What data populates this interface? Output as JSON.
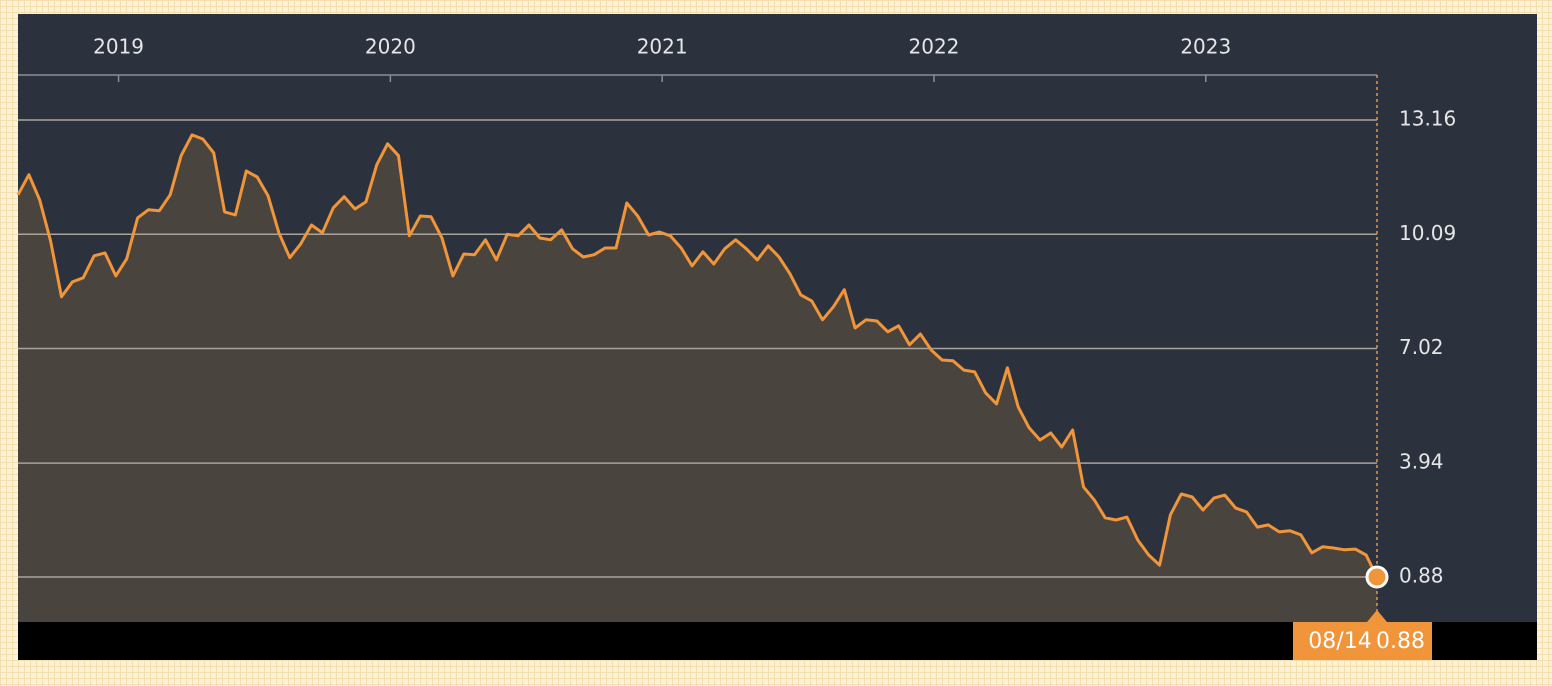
{
  "chart_data": {
    "type": "area",
    "x": [
      2018.63,
      2018.67,
      2018.71,
      2018.75,
      2018.79,
      2018.83,
      2018.87,
      2018.91,
      2018.95,
      2018.99,
      2019.03,
      2019.07,
      2019.11,
      2019.15,
      2019.19,
      2019.23,
      2019.27,
      2019.31,
      2019.35,
      2019.39,
      2019.43,
      2019.47,
      2019.51,
      2019.55,
      2019.59,
      2019.63,
      2019.67,
      2019.71,
      2019.75,
      2019.79,
      2019.83,
      2019.87,
      2019.91,
      2019.95,
      2019.99,
      2020.03,
      2020.07,
      2020.11,
      2020.15,
      2020.19,
      2020.23,
      2020.27,
      2020.31,
      2020.35,
      2020.39,
      2020.43,
      2020.47,
      2020.51,
      2020.55,
      2020.59,
      2020.63,
      2020.67,
      2020.71,
      2020.75,
      2020.79,
      2020.83,
      2020.87,
      2020.91,
      2020.95,
      2020.99,
      2021.03,
      2021.07,
      2021.11,
      2021.15,
      2021.19,
      2021.23,
      2021.27,
      2021.31,
      2021.35,
      2021.39,
      2021.43,
      2021.47,
      2021.51,
      2021.55,
      2021.59,
      2021.63,
      2021.67,
      2021.71,
      2021.75,
      2021.79,
      2021.83,
      2021.87,
      2021.91,
      2021.95,
      2021.99,
      2022.03,
      2022.07,
      2022.11,
      2022.15,
      2022.19,
      2022.23,
      2022.27,
      2022.31,
      2022.35,
      2022.39,
      2022.43,
      2022.47,
      2022.51,
      2022.55,
      2022.59,
      2022.63,
      2022.67,
      2022.71,
      2022.75,
      2022.79,
      2022.83,
      2022.87,
      2022.91,
      2022.95,
      2022.99,
      2023.03,
      2023.07,
      2023.11,
      2023.15,
      2023.19,
      2023.23,
      2023.27,
      2023.31,
      2023.35,
      2023.39,
      2023.43,
      2023.47,
      2023.51,
      2023.55,
      2023.59,
      2023.63
    ],
    "series": [
      {
        "color": "#f0953a",
        "values": [
          11.15,
          11.69,
          11.01,
          9.91,
          8.41,
          8.81,
          8.92,
          9.51,
          9.59,
          8.97,
          9.43,
          10.53,
          10.75,
          10.72,
          11.15,
          12.2,
          12.76,
          12.65,
          12.28,
          10.69,
          10.61,
          11.79,
          11.63,
          11.12,
          10.13,
          9.46,
          9.83,
          10.34,
          10.13,
          10.8,
          11.1,
          10.77,
          10.96,
          11.96,
          12.52,
          12.2,
          10.05,
          10.58,
          10.56,
          9.99,
          8.97,
          9.56,
          9.54,
          9.94,
          9.4,
          10.09,
          10.05,
          10.34,
          9.99,
          9.94,
          10.21,
          9.7,
          9.48,
          9.54,
          9.72,
          9.72,
          10.93,
          10.58,
          10.07,
          10.15,
          10.05,
          9.72,
          9.24,
          9.62,
          9.29,
          9.7,
          9.94,
          9.7,
          9.4,
          9.78,
          9.48,
          9.03,
          8.46,
          8.3,
          7.79,
          8.14,
          8.6,
          7.57,
          7.79,
          7.76,
          7.47,
          7.63,
          7.12,
          7.41,
          6.98,
          6.71,
          6.69,
          6.44,
          6.39,
          5.83,
          5.53,
          6.5,
          5.45,
          4.89,
          4.56,
          4.75,
          4.37,
          4.83,
          3.3,
          2.95,
          2.47,
          2.41,
          2.49,
          1.87,
          1.47,
          1.2,
          2.55,
          3.11,
          3.03,
          2.68,
          3.0,
          3.08,
          2.73,
          2.63,
          2.22,
          2.28,
          2.09,
          2.12,
          2.01,
          1.53,
          1.69,
          1.66,
          1.61,
          1.63,
          1.47,
          0.88
        ]
      }
    ],
    "xlim": [
      2018.63,
      2023.63
    ],
    "xticks": [
      2019,
      2020,
      2021,
      2022,
      2023
    ],
    "ylim": [
      -0.33,
      14.37
    ],
    "yticks": [
      13.16,
      10.09,
      7.02,
      3.94,
      0.88
    ],
    "grid": true,
    "current_date": "08/14"
  }
}
